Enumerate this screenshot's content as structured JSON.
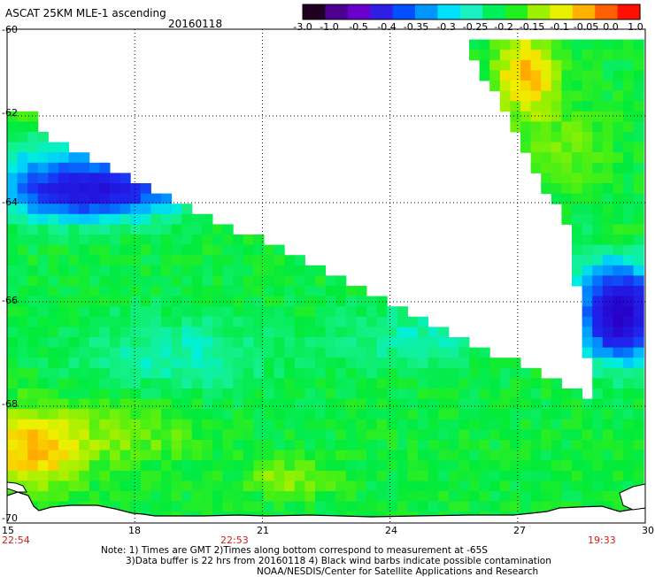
{
  "header": {
    "product": "ASCAT 25KM MLE-1 ascending",
    "date": "20160118"
  },
  "colorbar": {
    "ticks": [
      "-3.0",
      "-1.0",
      "-0.5",
      "-0.4",
      "-0.35",
      "-0.3",
      "-0.25",
      "-0.2",
      "-0.15",
      "-0.1",
      "-0.05",
      "0.0",
      "1.0"
    ],
    "colors": [
      "#200020",
      "#4b0090",
      "#6a00cc",
      "#2f1fe6",
      "#0050ff",
      "#0096ff",
      "#00e0ff",
      "#1af0c0",
      "#00f05a",
      "#20f020",
      "#9cf000",
      "#e8f000",
      "#ffb000",
      "#ff6000",
      "#ff1000"
    ]
  },
  "map": {
    "lat_ticks": [
      "-60",
      "-62",
      "-64",
      "-66",
      "-68",
      "-70"
    ],
    "lon_ticks": [
      "15",
      "18",
      "21",
      "24",
      "27",
      "30"
    ],
    "times": [
      "22:54",
      "22:53",
      "19:33"
    ],
    "lat_range": [
      -70,
      -60
    ],
    "lon_range": [
      15,
      30
    ]
  },
  "notes": {
    "line1": "Note: 1) Times are GMT 2)Times along bottom correspond to measurement at -65S",
    "line2": "3)Data buffer is 22 hrs from 20160118 4) Black wind barbs indicate possible contamination",
    "line3": "NOAA/NESDIS/Center for Satellite Applications and Research"
  }
}
